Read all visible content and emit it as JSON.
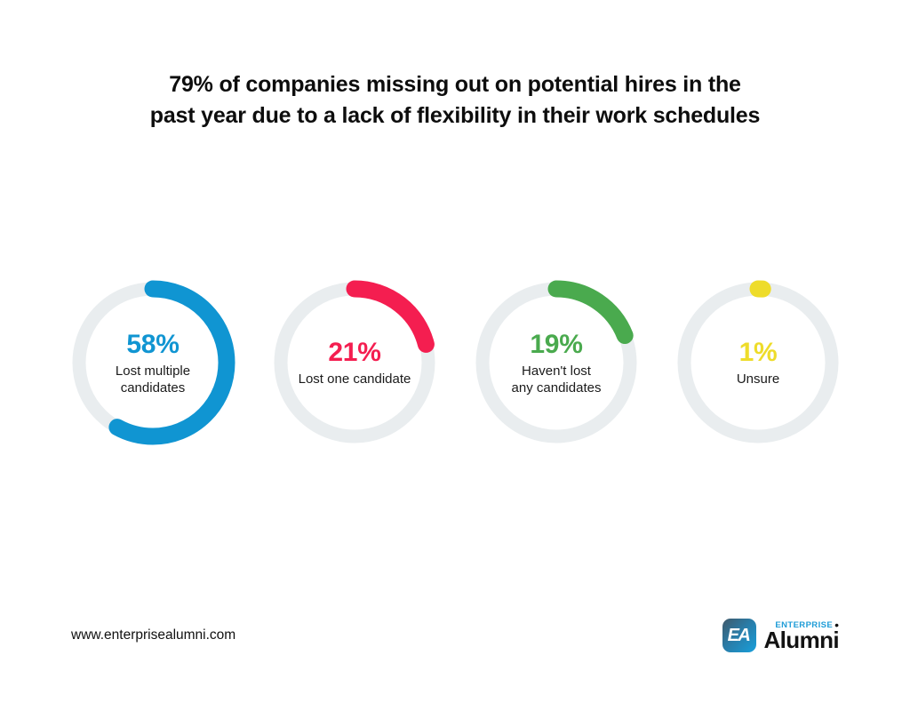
{
  "title": "79% of companies missing out on potential hires in the past year due to a lack of flexibility in their work schedules",
  "chart_data": {
    "type": "donut",
    "description": "Four individual donut gauge charts, each showing one response share; arcs start at 12 o'clock and sweep clockwise with rounded caps",
    "track_color": "#e9edef",
    "start_angle_deg": -90,
    "direction": "clockwise",
    "categories": [
      "Lost multiple candidates",
      "Lost one candidate",
      "Haven't lost any candidates",
      "Unsure"
    ],
    "values": [
      58,
      21,
      19,
      1
    ],
    "items": [
      {
        "value": 58,
        "unit": "%",
        "label_lines": [
          "Lost multiple",
          "candidates"
        ],
        "color": "#1095d2"
      },
      {
        "value": 21,
        "unit": "%",
        "label_lines": [
          "Lost one candidate"
        ],
        "color": "#f41e50"
      },
      {
        "value": 19,
        "unit": "%",
        "label_lines": [
          "Haven't lost",
          "any candidates"
        ],
        "color": "#4aaa4e"
      },
      {
        "value": 1,
        "unit": "%",
        "label_lines": [
          "Unsure"
        ],
        "color": "#eedc2a"
      }
    ]
  },
  "footer": {
    "website": "www.enterprisealumni.com",
    "logo": {
      "badge": "EA",
      "enterprise": "ENTERPRISE",
      "dot": "•",
      "alumni": "Alumni",
      "brand_blue": "#1e9cd7"
    }
  }
}
